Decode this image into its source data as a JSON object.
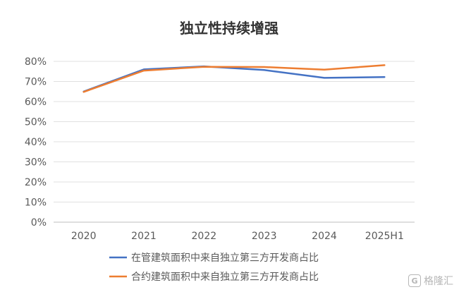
{
  "chart_data": {
    "type": "line",
    "title": "独立性持续增强",
    "categories": [
      "2020",
      "2021",
      "2022",
      "2023",
      "2024",
      "2025H1"
    ],
    "y_ticks": [
      "0%",
      "10%",
      "20%",
      "30%",
      "40%",
      "50%",
      "60%",
      "70%",
      "80%"
    ],
    "ylim": [
      0,
      0.8
    ],
    "grid": true,
    "legend_position": "bottom",
    "series": [
      {
        "name": "在管建筑面积中来自独立第三方开发商占比",
        "color": "#4472C4",
        "values": [
          0.65,
          0.76,
          0.775,
          0.757,
          0.718,
          0.722
        ]
      },
      {
        "name": "合约建筑面积中来自独立第三方开发商占比",
        "color": "#ED7D31",
        "values": [
          0.648,
          0.754,
          0.773,
          0.772,
          0.759,
          0.781
        ]
      }
    ]
  },
  "watermark": {
    "text": "格隆汇",
    "logo": "G"
  }
}
